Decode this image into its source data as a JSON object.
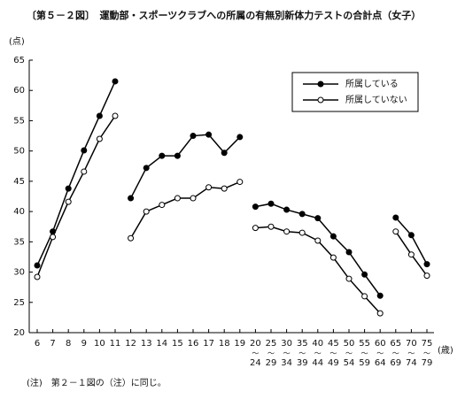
{
  "chart_data": {
    "type": "line",
    "title": "〔第５－２図〕　運動部・スポーツクラブへの所属の有無別新体力テストの合計点（女子）",
    "y_label": "(点)",
    "x_label": "(歳)",
    "note": "(注)　第２－１図の（注）に同じ。",
    "categories": [
      "6",
      "7",
      "8",
      "9",
      "10",
      "11",
      "12",
      "13",
      "14",
      "15",
      "16",
      "17",
      "18",
      "19",
      "20〜24",
      "25〜29",
      "30〜34",
      "35〜39",
      "40〜44",
      "45〜49",
      "50〜54",
      "55〜59",
      "60〜64",
      "65〜69",
      "70〜74",
      "75〜79"
    ],
    "breaks": [
      6,
      14,
      23
    ],
    "ylim": [
      20,
      65
    ],
    "yticks": [
      20,
      25,
      30,
      35,
      40,
      45,
      50,
      55,
      60,
      65
    ],
    "legend": "top-right",
    "series": [
      {
        "name": "所属している",
        "color": "#000000",
        "marker": "filled",
        "values": [
          31.1,
          36.7,
          43.8,
          50.1,
          55.8,
          61.5,
          42.2,
          47.2,
          49.2,
          49.2,
          52.5,
          52.7,
          49.7,
          52.3,
          40.8,
          41.3,
          40.3,
          39.6,
          38.9,
          35.9,
          33.3,
          29.6,
          26.1,
          39.0,
          36.1,
          31.3
        ]
      },
      {
        "name": "所属していない",
        "color": "#000000",
        "marker": "open",
        "values": [
          29.2,
          35.8,
          41.6,
          46.6,
          52.0,
          55.8,
          35.6,
          40.0,
          41.1,
          42.2,
          42.2,
          44.0,
          43.8,
          44.9,
          37.3,
          37.5,
          36.7,
          36.5,
          35.2,
          32.4,
          28.9,
          26.0,
          23.2,
          36.7,
          32.9,
          29.4
        ]
      }
    ]
  }
}
